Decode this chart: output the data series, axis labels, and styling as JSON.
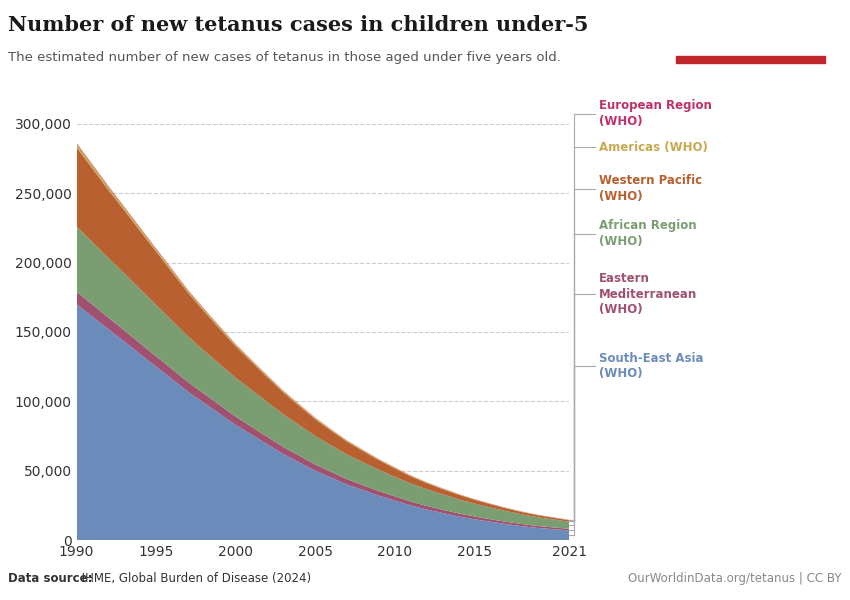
{
  "title": "Number of new tetanus cases in children under-5",
  "subtitle": "The estimated number of new cases of tetanus in those aged under five years old.",
  "datasource_bold": "Data source:",
  "datasource_regular": " IHME, Global Burden of Disease (2024)",
  "url": "OurWorldinData.org/tetanus | CC BY",
  "years": [
    1990,
    1991,
    1992,
    1993,
    1994,
    1995,
    1996,
    1997,
    1998,
    1999,
    2000,
    2001,
    2002,
    2003,
    2004,
    2005,
    2006,
    2007,
    2008,
    2009,
    2010,
    2011,
    2012,
    2013,
    2014,
    2015,
    2016,
    2017,
    2018,
    2019,
    2020,
    2021
  ],
  "series": [
    {
      "name": "South-East Asia\n(WHO)",
      "label": "South-East Asia\n(WHO)",
      "color": "#6b8cba",
      "values": [
        170000,
        161000,
        152000,
        143000,
        134000,
        125000,
        116000,
        107000,
        99000,
        91000,
        83000,
        76000,
        69000,
        62000,
        56000,
        50000,
        45000,
        40000,
        36000,
        32000,
        28500,
        25000,
        22000,
        19500,
        17000,
        15000,
        13200,
        11500,
        10000,
        8700,
        7800,
        6900
      ]
    },
    {
      "name": "Eastern Mediterranean\n(WHO)",
      "label": "Eastern\nMediterranean\n(WHO)",
      "color": "#a05070",
      "values": [
        9000,
        8700,
        8400,
        8100,
        7800,
        7500,
        7200,
        6900,
        6600,
        6300,
        6000,
        5700,
        5400,
        5100,
        4800,
        4500,
        4200,
        3900,
        3600,
        3300,
        3000,
        2800,
        2600,
        2400,
        2200,
        2000,
        1800,
        1650,
        1500,
        1380,
        1260,
        1150
      ]
    },
    {
      "name": "African Region\n(WHO)",
      "label": "African Region\n(WHO)",
      "color": "#7a9e72",
      "values": [
        47000,
        45000,
        43000,
        41000,
        39000,
        37000,
        35000,
        33000,
        31000,
        29500,
        28000,
        26500,
        25000,
        23500,
        22000,
        20500,
        19000,
        17700,
        16500,
        15300,
        14100,
        13000,
        12000,
        11100,
        10200,
        9300,
        8500,
        7700,
        7000,
        6300,
        5700,
        5100
      ]
    },
    {
      "name": "Western Pacific\n(WHO)",
      "label": "Western Pacific\n(WHO)",
      "color": "#b86030",
      "values": [
        57000,
        53000,
        49000,
        45500,
        42000,
        38500,
        35000,
        31500,
        28500,
        25500,
        22700,
        20200,
        17900,
        15800,
        13900,
        12200,
        10700,
        9300,
        8100,
        7000,
        6100,
        5200,
        4500,
        3800,
        3300,
        2800,
        2400,
        2000,
        1700,
        1450,
        1250,
        1050
      ]
    },
    {
      "name": "Americas (WHO)",
      "label": "Americas (WHO)",
      "color": "#c8a850",
      "values": [
        2500,
        2400,
        2200,
        2100,
        1900,
        1800,
        1700,
        1600,
        1500,
        1400,
        1300,
        1200,
        1100,
        1000,
        950,
        880,
        810,
        750,
        690,
        630,
        580,
        530,
        490,
        450,
        410,
        380,
        350,
        320,
        300,
        280,
        260,
        240
      ]
    },
    {
      "name": "European Region\n(WHO)",
      "label": "European Region\n(WHO)",
      "color": "#c0306a",
      "values": [
        600,
        560,
        520,
        490,
        460,
        430,
        400,
        375,
        350,
        325,
        300,
        280,
        260,
        245,
        230,
        215,
        200,
        190,
        180,
        170,
        160,
        150,
        140,
        133,
        126,
        119,
        112,
        107,
        102,
        97,
        92,
        87
      ]
    }
  ],
  "ylim": [
    0,
    320000
  ],
  "yticks": [
    0,
    50000,
    100000,
    150000,
    200000,
    250000,
    300000
  ],
  "xlim": [
    1990,
    2021
  ],
  "xticks": [
    1990,
    1995,
    2000,
    2005,
    2010,
    2015,
    2021
  ]
}
